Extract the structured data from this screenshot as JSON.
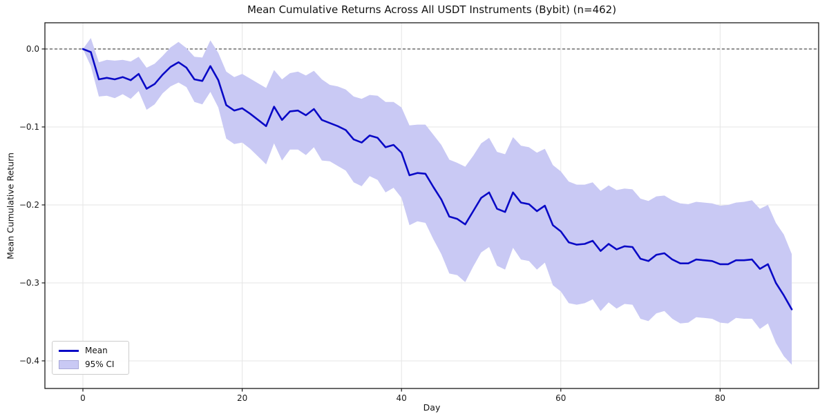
{
  "figure": {
    "title": "Mean Cumulative Returns Across All USDT Instruments (Bybit) (n=462)",
    "x_axis_label": "Day",
    "y_axis_label": "Mean Cumulative Return"
  },
  "legend": {
    "position": "lower left",
    "entries": [
      {
        "label": "Mean",
        "swatch": "line-swatch",
        "color": "#0909c6"
      },
      {
        "label": "95% CI",
        "swatch": "band-swatch",
        "color": "#c9c9f4"
      }
    ]
  },
  "colors": {
    "mean_line": "#0909c6",
    "ci_fill": "#c9c9f4",
    "grid": "#e5e5e5",
    "zero_line": "#222222",
    "spine": "#1a1a1a",
    "tick_text": "#1a1a1a"
  },
  "chart_data": {
    "type": "line",
    "title": "Mean Cumulative Returns Across All USDT Instruments (Bybit) (n=462)",
    "xlabel": "Day",
    "ylabel": "Mean Cumulative Return",
    "grid": true,
    "zero_line_dashed": true,
    "legend_position": "lower left",
    "xlim": [
      -4.77,
      92.37
    ],
    "ylim": [
      -0.4354,
      0.0336
    ],
    "x_ticks": [
      0,
      20,
      40,
      60,
      80
    ],
    "x_tick_labels": [
      "0",
      "20",
      "40",
      "60",
      "80"
    ],
    "y_ticks": [
      0.0,
      -0.1,
      -0.2,
      -0.3,
      -0.4
    ],
    "y_tick_labels": [
      "0.0",
      "−0.1",
      "−0.2",
      "−0.3",
      "−0.4"
    ],
    "x_unit": "day",
    "x": [
      0,
      1,
      2,
      3,
      4,
      5,
      6,
      7,
      8,
      9,
      10,
      11,
      12,
      13,
      14,
      15,
      16,
      17,
      18,
      19,
      20,
      21,
      22,
      23,
      24,
      25,
      26,
      27,
      28,
      29,
      30,
      31,
      32,
      33,
      34,
      35,
      36,
      37,
      38,
      39,
      40,
      41,
      42,
      43,
      44,
      45,
      46,
      47,
      48,
      49,
      50,
      51,
      52,
      53,
      54,
      55,
      56,
      57,
      58,
      59,
      60,
      61,
      62,
      63,
      64,
      65,
      66,
      67,
      68,
      69,
      70,
      71,
      72,
      73,
      74,
      75,
      76,
      77,
      78,
      79,
      80,
      81,
      82,
      83,
      84,
      85,
      86,
      87,
      88,
      89
    ],
    "series": [
      {
        "name": "Mean",
        "style": "line",
        "color": "#0909c6",
        "values": [
          0.0,
          -0.004,
          -0.039,
          -0.037,
          -0.039,
          -0.036,
          -0.04,
          -0.032,
          -0.051,
          -0.045,
          -0.033,
          -0.023,
          -0.017,
          -0.024,
          -0.039,
          -0.041,
          -0.022,
          -0.04,
          -0.072,
          -0.079,
          -0.076,
          -0.083,
          -0.091,
          -0.099,
          -0.074,
          -0.091,
          -0.08,
          -0.079,
          -0.085,
          -0.077,
          -0.091,
          -0.095,
          -0.099,
          -0.104,
          -0.116,
          -0.12,
          -0.111,
          -0.114,
          -0.126,
          -0.123,
          -0.133,
          -0.162,
          -0.159,
          -0.16,
          -0.177,
          -0.193,
          -0.215,
          -0.218,
          -0.225,
          -0.208,
          -0.191,
          -0.184,
          -0.205,
          -0.209,
          -0.184,
          -0.197,
          -0.199,
          -0.208,
          -0.201,
          -0.226,
          -0.234,
          -0.248,
          -0.251,
          -0.25,
          -0.246,
          -0.259,
          -0.25,
          -0.257,
          -0.253,
          -0.254,
          -0.269,
          -0.272,
          -0.264,
          -0.262,
          -0.27,
          -0.275,
          -0.275,
          -0.27,
          -0.271,
          -0.272,
          -0.276,
          -0.276,
          -0.271,
          -0.271,
          -0.27,
          -0.282,
          -0.276,
          -0.3,
          -0.316,
          -0.334
        ]
      },
      {
        "name": "95% CI",
        "style": "band",
        "color": "#c9c9f4",
        "halfwidth": [
          0.0,
          0.018,
          0.022,
          0.023,
          0.024,
          0.022,
          0.024,
          0.022,
          0.027,
          0.026,
          0.024,
          0.025,
          0.026,
          0.025,
          0.029,
          0.03,
          0.033,
          0.035,
          0.043,
          0.043,
          0.044,
          0.045,
          0.047,
          0.049,
          0.047,
          0.052,
          0.049,
          0.05,
          0.051,
          0.049,
          0.052,
          0.049,
          0.051,
          0.052,
          0.055,
          0.056,
          0.052,
          0.054,
          0.058,
          0.055,
          0.058,
          0.064,
          0.062,
          0.063,
          0.067,
          0.07,
          0.073,
          0.072,
          0.074,
          0.071,
          0.07,
          0.07,
          0.073,
          0.074,
          0.071,
          0.073,
          0.073,
          0.075,
          0.073,
          0.077,
          0.077,
          0.078,
          0.077,
          0.076,
          0.075,
          0.077,
          0.075,
          0.076,
          0.074,
          0.074,
          0.077,
          0.077,
          0.075,
          0.074,
          0.076,
          0.077,
          0.076,
          0.074,
          0.074,
          0.074,
          0.075,
          0.076,
          0.074,
          0.075,
          0.076,
          0.077,
          0.076,
          0.077,
          0.078,
          0.071
        ]
      }
    ]
  }
}
